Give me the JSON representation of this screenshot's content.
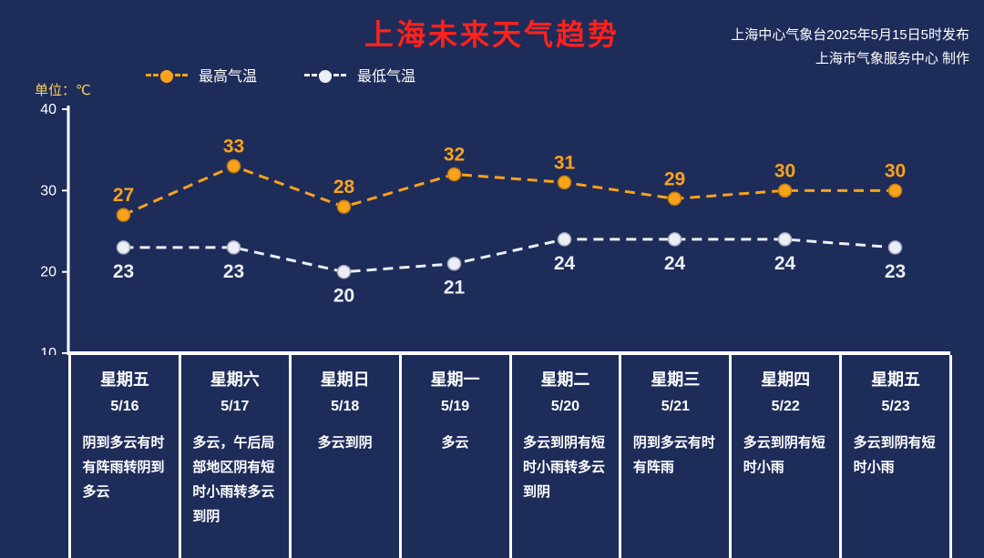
{
  "header": {
    "title": "上海未来天气趋势",
    "source_line1": "上海中心气象台2025年5月15日5时发布",
    "source_line2": "上海市气象服务中心 制作"
  },
  "unit_label": "单位：℃",
  "colors": {
    "background": "#1e2c5a",
    "title": "#ff221c",
    "high": "#f9a21b",
    "low": "#eceef5",
    "unit": "#ffd34d",
    "axis": "#ffffff"
  },
  "chart_data": {
    "type": "line",
    "title": "上海未来天气趋势",
    "ylabel": "单位：℃",
    "categories": [
      "5/16",
      "5/17",
      "5/18",
      "5/19",
      "5/20",
      "5/21",
      "5/22",
      "5/23"
    ],
    "weekdays": [
      "星期五",
      "星期六",
      "星期日",
      "星期一",
      "星期二",
      "星期三",
      "星期四",
      "星期五"
    ],
    "series": [
      {
        "name": "最高气温",
        "values": [
          27,
          33,
          28,
          32,
          31,
          29,
          30,
          30
        ],
        "color": "#f9a21b",
        "style": "dashed"
      },
      {
        "name": "最低气温",
        "values": [
          23,
          23,
          20,
          21,
          24,
          24,
          24,
          23
        ],
        "color": "#eceef5",
        "style": "dashed"
      }
    ],
    "ylim": [
      10,
      40
    ],
    "yticks": [
      40,
      30,
      20,
      10
    ],
    "grid": false,
    "legend_position": "top-left"
  },
  "forecast": [
    {
      "weekday": "星期五",
      "date": "5/16",
      "desc": "阴到多云有时有阵雨转阴到多云"
    },
    {
      "weekday": "星期六",
      "date": "5/17",
      "desc": "多云，午后局部地区阴有短时小雨转多云到阴"
    },
    {
      "weekday": "星期日",
      "date": "5/18",
      "desc": "多云到阴"
    },
    {
      "weekday": "星期一",
      "date": "5/19",
      "desc": "多云"
    },
    {
      "weekday": "星期二",
      "date": "5/20",
      "desc": "多云到阴有短时小雨转多云到阴"
    },
    {
      "weekday": "星期三",
      "date": "5/21",
      "desc": "阴到多云有时有阵雨"
    },
    {
      "weekday": "星期四",
      "date": "5/22",
      "desc": "多云到阴有短时小雨"
    },
    {
      "weekday": "星期五",
      "date": "5/23",
      "desc": "多云到阴有短时小雨"
    }
  ]
}
